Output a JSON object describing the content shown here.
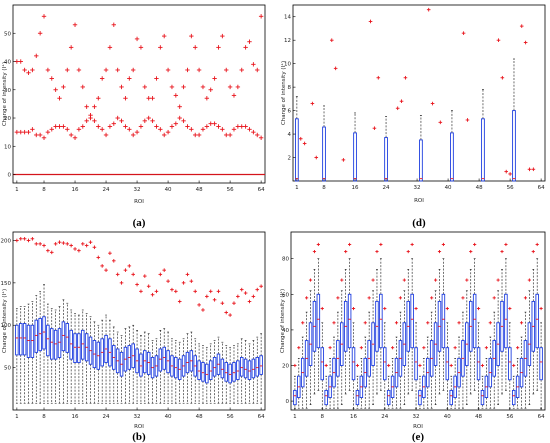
{
  "figure": {
    "colors": {
      "outlier": "#e8141c",
      "box": "#1f3fe0",
      "zero_line": "#d4141c",
      "whisker": "#111111"
    }
  },
  "chart_data": [
    {
      "type": "scatter",
      "panel": "a",
      "caption": "(a)",
      "ylabel": "Change of intensity (I⁺)",
      "xlabel": "ROI",
      "xticks": [
        1,
        8,
        16,
        24,
        32,
        40,
        48,
        56,
        64
      ],
      "yticks": [
        0,
        10,
        20,
        30,
        40,
        50
      ],
      "xlim": [
        0,
        65
      ],
      "ylim": [
        -3,
        60
      ],
      "grid": false,
      "baseline": 0,
      "series": [
        {
          "values": [
            40,
            40,
            37,
            36,
            37,
            42,
            50,
            56,
            37,
            34,
            30,
            27,
            31,
            37,
            45,
            53,
            37,
            31,
            24,
            21,
            24,
            27,
            34,
            37,
            45,
            53,
            37,
            31,
            27,
            34,
            37,
            48,
            45,
            31,
            27,
            27,
            34,
            45,
            49,
            37,
            31,
            28,
            24,
            31,
            37,
            49,
            45,
            37,
            31,
            27,
            30,
            34,
            45,
            49,
            37,
            31,
            28,
            31,
            37,
            45,
            47,
            39,
            37,
            56
          ]
        },
        {
          "values": [
            15,
            15,
            15,
            15,
            16,
            14,
            14,
            13,
            15,
            16,
            17,
            17,
            17,
            16,
            14,
            13,
            16,
            17,
            19,
            20,
            19,
            17,
            16,
            14,
            17,
            18,
            20,
            19,
            17,
            16,
            14,
            15,
            17,
            19,
            20,
            19,
            17,
            16,
            14,
            15,
            17,
            18,
            20,
            19,
            17,
            16,
            14,
            14,
            16,
            17,
            18,
            18,
            17,
            16,
            14,
            14,
            16,
            17,
            17,
            17,
            16,
            15,
            14,
            13
          ]
        }
      ]
    },
    {
      "type": "box",
      "panel": "b",
      "caption": "(b)",
      "ylabel": "Change of intensity (I⁺)",
      "xlabel": "ROI",
      "xticks": [
        1,
        8,
        16,
        24,
        32,
        40,
        48,
        56,
        64
      ],
      "yticks": [
        50,
        100,
        150,
        200
      ],
      "xlim": [
        0,
        65
      ],
      "ylim": [
        0,
        210
      ],
      "grid": false,
      "q1": [
        65,
        65,
        65,
        62,
        62,
        68,
        70,
        72,
        64,
        60,
        60,
        62,
        70,
        68,
        60,
        56,
        56,
        60,
        58,
        54,
        50,
        48,
        52,
        56,
        52,
        48,
        44,
        40,
        46,
        48,
        50,
        44,
        40,
        44,
        42,
        38,
        40,
        46,
        48,
        44,
        40,
        38,
        36,
        40,
        44,
        46,
        40,
        36,
        34,
        32,
        36,
        40,
        42,
        38,
        34,
        32,
        34,
        36,
        40,
        38,
        36,
        38,
        40,
        42
      ],
      "median": [
        85,
        85,
        85,
        82,
        82,
        88,
        90,
        92,
        84,
        80,
        78,
        80,
        88,
        86,
        78,
        74,
        74,
        78,
        74,
        70,
        66,
        64,
        68,
        72,
        68,
        62,
        58,
        54,
        60,
        62,
        64,
        58,
        52,
        58,
        56,
        50,
        52,
        60,
        62,
        58,
        52,
        50,
        48,
        52,
        56,
        58,
        52,
        46,
        44,
        42,
        46,
        50,
        54,
        48,
        44,
        42,
        44,
        46,
        50,
        48,
        46,
        48,
        50,
        52
      ],
      "q3": [
        100,
        102,
        102,
        100,
        100,
        106,
        108,
        110,
        100,
        96,
        94,
        96,
        104,
        102,
        94,
        90,
        90,
        94,
        90,
        86,
        82,
        80,
        84,
        88,
        84,
        76,
        72,
        68,
        74,
        76,
        78,
        72,
        66,
        70,
        68,
        62,
        64,
        72,
        74,
        70,
        64,
        62,
        60,
        64,
        68,
        70,
        64,
        58,
        56,
        54,
        58,
        62,
        66,
        60,
        56,
        54,
        56,
        58,
        62,
        60,
        58,
        60,
        62,
        64
      ],
      "whisker_low": 8,
      "whisker_high": [
        120,
        122,
        122,
        125,
        128,
        135,
        140,
        148,
        125,
        120,
        118,
        122,
        130,
        126,
        118,
        114,
        112,
        118,
        114,
        110,
        104,
        100,
        106,
        112,
        106,
        98,
        92,
        88,
        96,
        98,
        100,
        94,
        88,
        92,
        90,
        82,
        84,
        94,
        96,
        92,
        84,
        82,
        80,
        84,
        90,
        92,
        84,
        78,
        76,
        74,
        78,
        82,
        86,
        80,
        76,
        74,
        76,
        78,
        84,
        82,
        78,
        82,
        86,
        90
      ],
      "outliers": [
        200,
        202,
        202,
        200,
        202,
        196,
        196,
        194,
        188,
        186,
        196,
        198,
        197,
        196,
        194,
        190,
        188,
        196,
        194,
        198,
        192,
        180,
        170,
        165,
        185,
        176,
        160,
        150,
        165,
        170,
        160,
        148,
        140,
        158,
        146,
        136,
        140,
        160,
        165,
        152,
        142,
        140,
        128,
        150,
        160,
        152,
        140,
        124,
        118,
        134,
        140,
        130,
        140,
        126,
        115,
        112,
        126,
        134,
        142,
        138,
        128,
        134,
        142,
        146
      ]
    },
    {
      "type": "box",
      "panel": "d",
      "caption": "(d)",
      "ylabel": "Change of intensity (I⁺)",
      "xlabel": "ROI",
      "xticks": [
        1,
        8,
        16,
        24,
        32,
        40,
        48,
        56,
        64
      ],
      "yticks": [
        2,
        4,
        6,
        8,
        10,
        12,
        14
      ],
      "xlim": [
        0,
        65
      ],
      "ylim": [
        0,
        15
      ],
      "grid": false,
      "boxes": [
        {
          "x": 1,
          "q1": 0,
          "median": 0.2,
          "q3": 5.3,
          "whisker_high": 7.2
        },
        {
          "x": 8,
          "q1": 0,
          "median": 0.2,
          "q3": 4.6,
          "whisker_high": 6.4
        },
        {
          "x": 16,
          "q1": 0,
          "median": 0.2,
          "q3": 4.1,
          "whisker_high": 5.8
        },
        {
          "x": 24,
          "q1": 0,
          "median": 0.2,
          "q3": 3.7,
          "whisker_high": 5.5
        },
        {
          "x": 33,
          "q1": 0,
          "median": 0.2,
          "q3": 3.5,
          "whisker_high": 5.6
        },
        {
          "x": 41,
          "q1": 0,
          "median": 0.2,
          "q3": 4.1,
          "whisker_high": 6.0
        },
        {
          "x": 49,
          "q1": 0,
          "median": 0.2,
          "q3": 5.3,
          "whisker_high": 7.8
        },
        {
          "x": 57,
          "q1": 0,
          "median": 0.2,
          "q3": 6.0,
          "whisker_high": 10.4
        }
      ],
      "outliers": [
        [
          2,
          3.6
        ],
        [
          3,
          3.2
        ],
        [
          5,
          6.6
        ],
        [
          6,
          2.0
        ],
        [
          10,
          12.0
        ],
        [
          11,
          9.6
        ],
        [
          13,
          1.8
        ],
        [
          20,
          13.6
        ],
        [
          21,
          4.5
        ],
        [
          22,
          8.8
        ],
        [
          27,
          6.2
        ],
        [
          28,
          6.8
        ],
        [
          29,
          8.8
        ],
        [
          35,
          14.6
        ],
        [
          36,
          6.6
        ],
        [
          38,
          5.0
        ],
        [
          44,
          12.6
        ],
        [
          45,
          5.2
        ],
        [
          53,
          12.0
        ],
        [
          54,
          8.8
        ],
        [
          55,
          0.8
        ],
        [
          56,
          0.6
        ],
        [
          59,
          13.2
        ],
        [
          60,
          11.8
        ],
        [
          61,
          1.0
        ],
        [
          62,
          1.0
        ]
      ]
    },
    {
      "type": "box",
      "panel": "e",
      "caption": "(e)",
      "ylabel": "Change of intensity (I⁺)",
      "xlabel": "ROI",
      "xticks": [
        1,
        8,
        16,
        24,
        32,
        40,
        48,
        56,
        64
      ],
      "yticks": [
        0,
        20,
        40,
        60,
        80
      ],
      "xlim": [
        0,
        65
      ],
      "ylim": [
        -5,
        95
      ],
      "grid": false,
      "cycle": {
        "q1": [
          -2,
          2,
          8,
          14,
          20,
          28,
          30,
          12
        ],
        "median": [
          3,
          8,
          16,
          24,
          32,
          42,
          46,
          22
        ],
        "q3": [
          6,
          14,
          24,
          34,
          44,
          56,
          60,
          30
        ],
        "whisker_low": [
          -4,
          -4,
          -4,
          -4,
          -2,
          4,
          6,
          -4
        ],
        "whisker_high": [
          14,
          24,
          36,
          50,
          62,
          74,
          80,
          44
        ],
        "outlier": [
          20,
          30,
          44,
          58,
          68,
          84,
          88,
          52
        ]
      }
    }
  ]
}
